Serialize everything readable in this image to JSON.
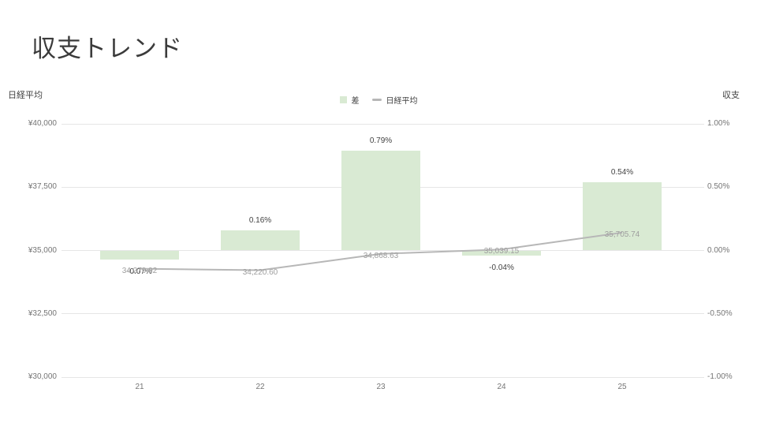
{
  "page": {
    "title": "収支トレンド"
  },
  "axes": {
    "left_title": "日経平均",
    "right_title": "収支"
  },
  "legend": {
    "bar_label": "差",
    "line_label": "日経平均"
  },
  "colors": {
    "background": "#ffffff",
    "bar": "#d9ead3",
    "line": "#b7b7b7",
    "grid": "#e6e6e6",
    "tick_text": "#757575",
    "bar_label_text": "#424242",
    "line_label_text": "#9e9e9e",
    "title_text": "#3b3b3b"
  },
  "chart_data": {
    "type": "combo-bar-line",
    "title": "収支トレンド",
    "categories": [
      "21",
      "22",
      "23",
      "24",
      "25"
    ],
    "series": [
      {
        "name": "差",
        "type": "bar",
        "axis": "right",
        "values": [
          -0.07,
          0.16,
          0.79,
          -0.04,
          0.54
        ],
        "labels": [
          "-0.07%",
          "0.16%",
          "0.79%",
          "-0.04%",
          "0.54%"
        ],
        "color": "#d9ead3"
      },
      {
        "name": "日経平均",
        "type": "line",
        "axis": "left",
        "values": [
          34279.92,
          34220.6,
          34868.63,
          35039.15,
          35705.74
        ],
        "labels": [
          "34,279.92",
          "34,220.60",
          "34,868.63",
          "35,039.15",
          "35,705.74"
        ],
        "color": "#b7b7b7"
      }
    ],
    "left_axis": {
      "title": "日経平均",
      "min": 30000,
      "max": 40000,
      "tick_labels": [
        "¥40,000",
        "¥37,500",
        "¥35,000",
        "¥32,500",
        "¥30,000"
      ],
      "tick_values": [
        40000,
        37500,
        35000,
        32500,
        30000
      ]
    },
    "right_axis": {
      "title": "収支",
      "min": -1.0,
      "max": 1.0,
      "tick_labels": [
        "1.00%",
        "0.50%",
        "0.00%",
        "-0.50%",
        "-1.00%"
      ],
      "tick_values": [
        1.0,
        0.5,
        0.0,
        -0.5,
        -1.0
      ]
    },
    "grid": true,
    "legend_position": "top"
  }
}
